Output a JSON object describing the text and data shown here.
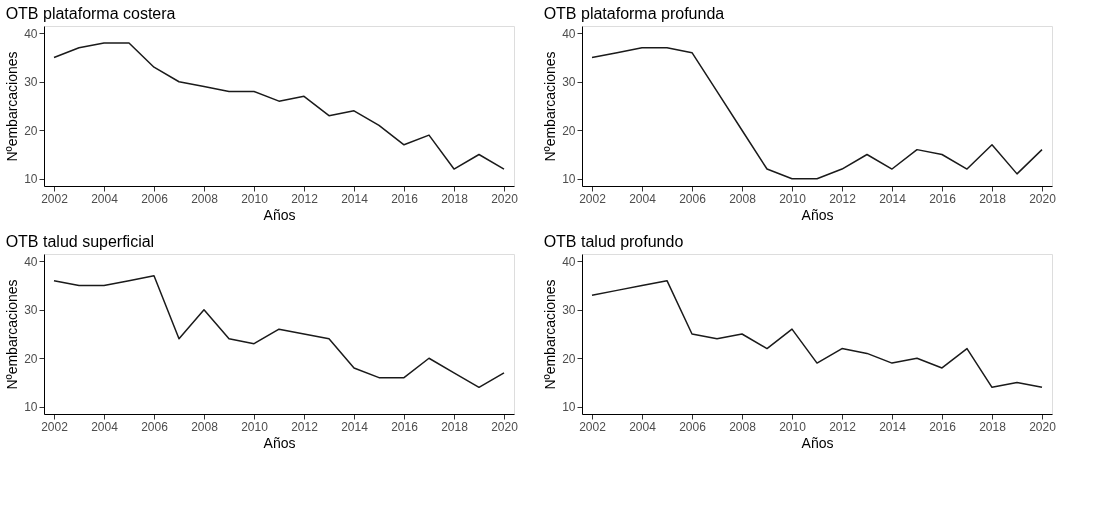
{
  "chart_data": [
    {
      "type": "line",
      "title": "OTB plataforma costera",
      "xlabel": "Años",
      "ylabel": "Nºembarcaciones",
      "x": [
        2002,
        2003,
        2004,
        2005,
        2006,
        2007,
        2008,
        2009,
        2010,
        2011,
        2012,
        2013,
        2014,
        2015,
        2016,
        2017,
        2018,
        2019,
        2020
      ],
      "series": [
        {
          "color": "#1a1a1a",
          "values": [
            35,
            37,
            38,
            38,
            33,
            30,
            29,
            28,
            28,
            26,
            27,
            23,
            24,
            21,
            17,
            19,
            12,
            15,
            12
          ]
        }
      ],
      "xlim": [
        2001.6,
        2020.4
      ],
      "ylim": [
        8.5,
        41.5
      ],
      "xticks": [
        2002,
        2004,
        2006,
        2008,
        2010,
        2012,
        2014,
        2016,
        2018,
        2020
      ],
      "yticks": [
        10,
        20,
        30,
        40
      ],
      "grid": false,
      "legend": false
    },
    {
      "type": "line",
      "title": "OTB plataforma profunda",
      "xlabel": "Años",
      "ylabel": "Nºembarcaciones",
      "x": [
        2002,
        2003,
        2004,
        2005,
        2006,
        2007,
        2008,
        2009,
        2010,
        2011,
        2012,
        2013,
        2014,
        2015,
        2016,
        2017,
        2018,
        2019,
        2020
      ],
      "series": [
        {
          "color": "#1a1a1a",
          "values": [
            35,
            36,
            37,
            37,
            36,
            28,
            20,
            12,
            10,
            10,
            12,
            15,
            12,
            16,
            15,
            12,
            17,
            11,
            16
          ]
        }
      ],
      "xlim": [
        2001.6,
        2020.4
      ],
      "ylim": [
        8.5,
        41.5
      ],
      "xticks": [
        2002,
        2004,
        2006,
        2008,
        2010,
        2012,
        2014,
        2016,
        2018,
        2020
      ],
      "yticks": [
        10,
        20,
        30,
        40
      ],
      "grid": false,
      "legend": false
    },
    {
      "type": "line",
      "title": "OTB talud superficial",
      "xlabel": "Años",
      "ylabel": "Nºembarcaciones",
      "x": [
        2002,
        2003,
        2004,
        2005,
        2006,
        2007,
        2008,
        2009,
        2010,
        2011,
        2012,
        2013,
        2014,
        2015,
        2016,
        2017,
        2018,
        2019,
        2020
      ],
      "series": [
        {
          "color": "#1a1a1a",
          "values": [
            36,
            35,
            35,
            36,
            37,
            24,
            30,
            24,
            23,
            26,
            25,
            24,
            18,
            16,
            16,
            20,
            17,
            14,
            17
          ]
        }
      ],
      "xlim": [
        2001.6,
        2020.4
      ],
      "ylim": [
        8.5,
        41.5
      ],
      "xticks": [
        2002,
        2004,
        2006,
        2008,
        2010,
        2012,
        2014,
        2016,
        2018,
        2020
      ],
      "yticks": [
        10,
        20,
        30,
        40
      ],
      "grid": false,
      "legend": false
    },
    {
      "type": "line",
      "title": "OTB talud profundo",
      "xlabel": "Años",
      "ylabel": "Nºembarcaciones",
      "x": [
        2002,
        2003,
        2004,
        2005,
        2006,
        2007,
        2008,
        2009,
        2010,
        2011,
        2012,
        2013,
        2014,
        2015,
        2016,
        2017,
        2018,
        2019,
        2020
      ],
      "series": [
        {
          "color": "#1a1a1a",
          "values": [
            33,
            34,
            35,
            36,
            25,
            24,
            25,
            22,
            26,
            19,
            22,
            21,
            19,
            20,
            18,
            22,
            14,
            15,
            14
          ]
        }
      ],
      "xlim": [
        2001.6,
        2020.4
      ],
      "ylim": [
        8.5,
        41.5
      ],
      "xticks": [
        2002,
        2004,
        2006,
        2008,
        2010,
        2012,
        2014,
        2016,
        2018,
        2020
      ],
      "yticks": [
        10,
        20,
        30,
        40
      ],
      "grid": false,
      "legend": false
    }
  ]
}
